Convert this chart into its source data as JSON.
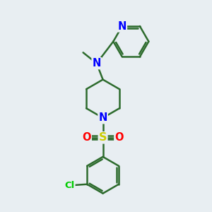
{
  "bg_color": "#e8eef2",
  "bond_color": "#2d6b2d",
  "bond_width": 1.8,
  "N_color": "#0000ff",
  "S_color": "#cccc00",
  "O_color": "#ff0000",
  "Cl_color": "#00cc00",
  "text_fontsize": 9.5,
  "fig_width": 3.0,
  "fig_height": 3.0,
  "dpi": 100,
  "xlim": [
    0,
    10
  ],
  "ylim": [
    0,
    10
  ]
}
